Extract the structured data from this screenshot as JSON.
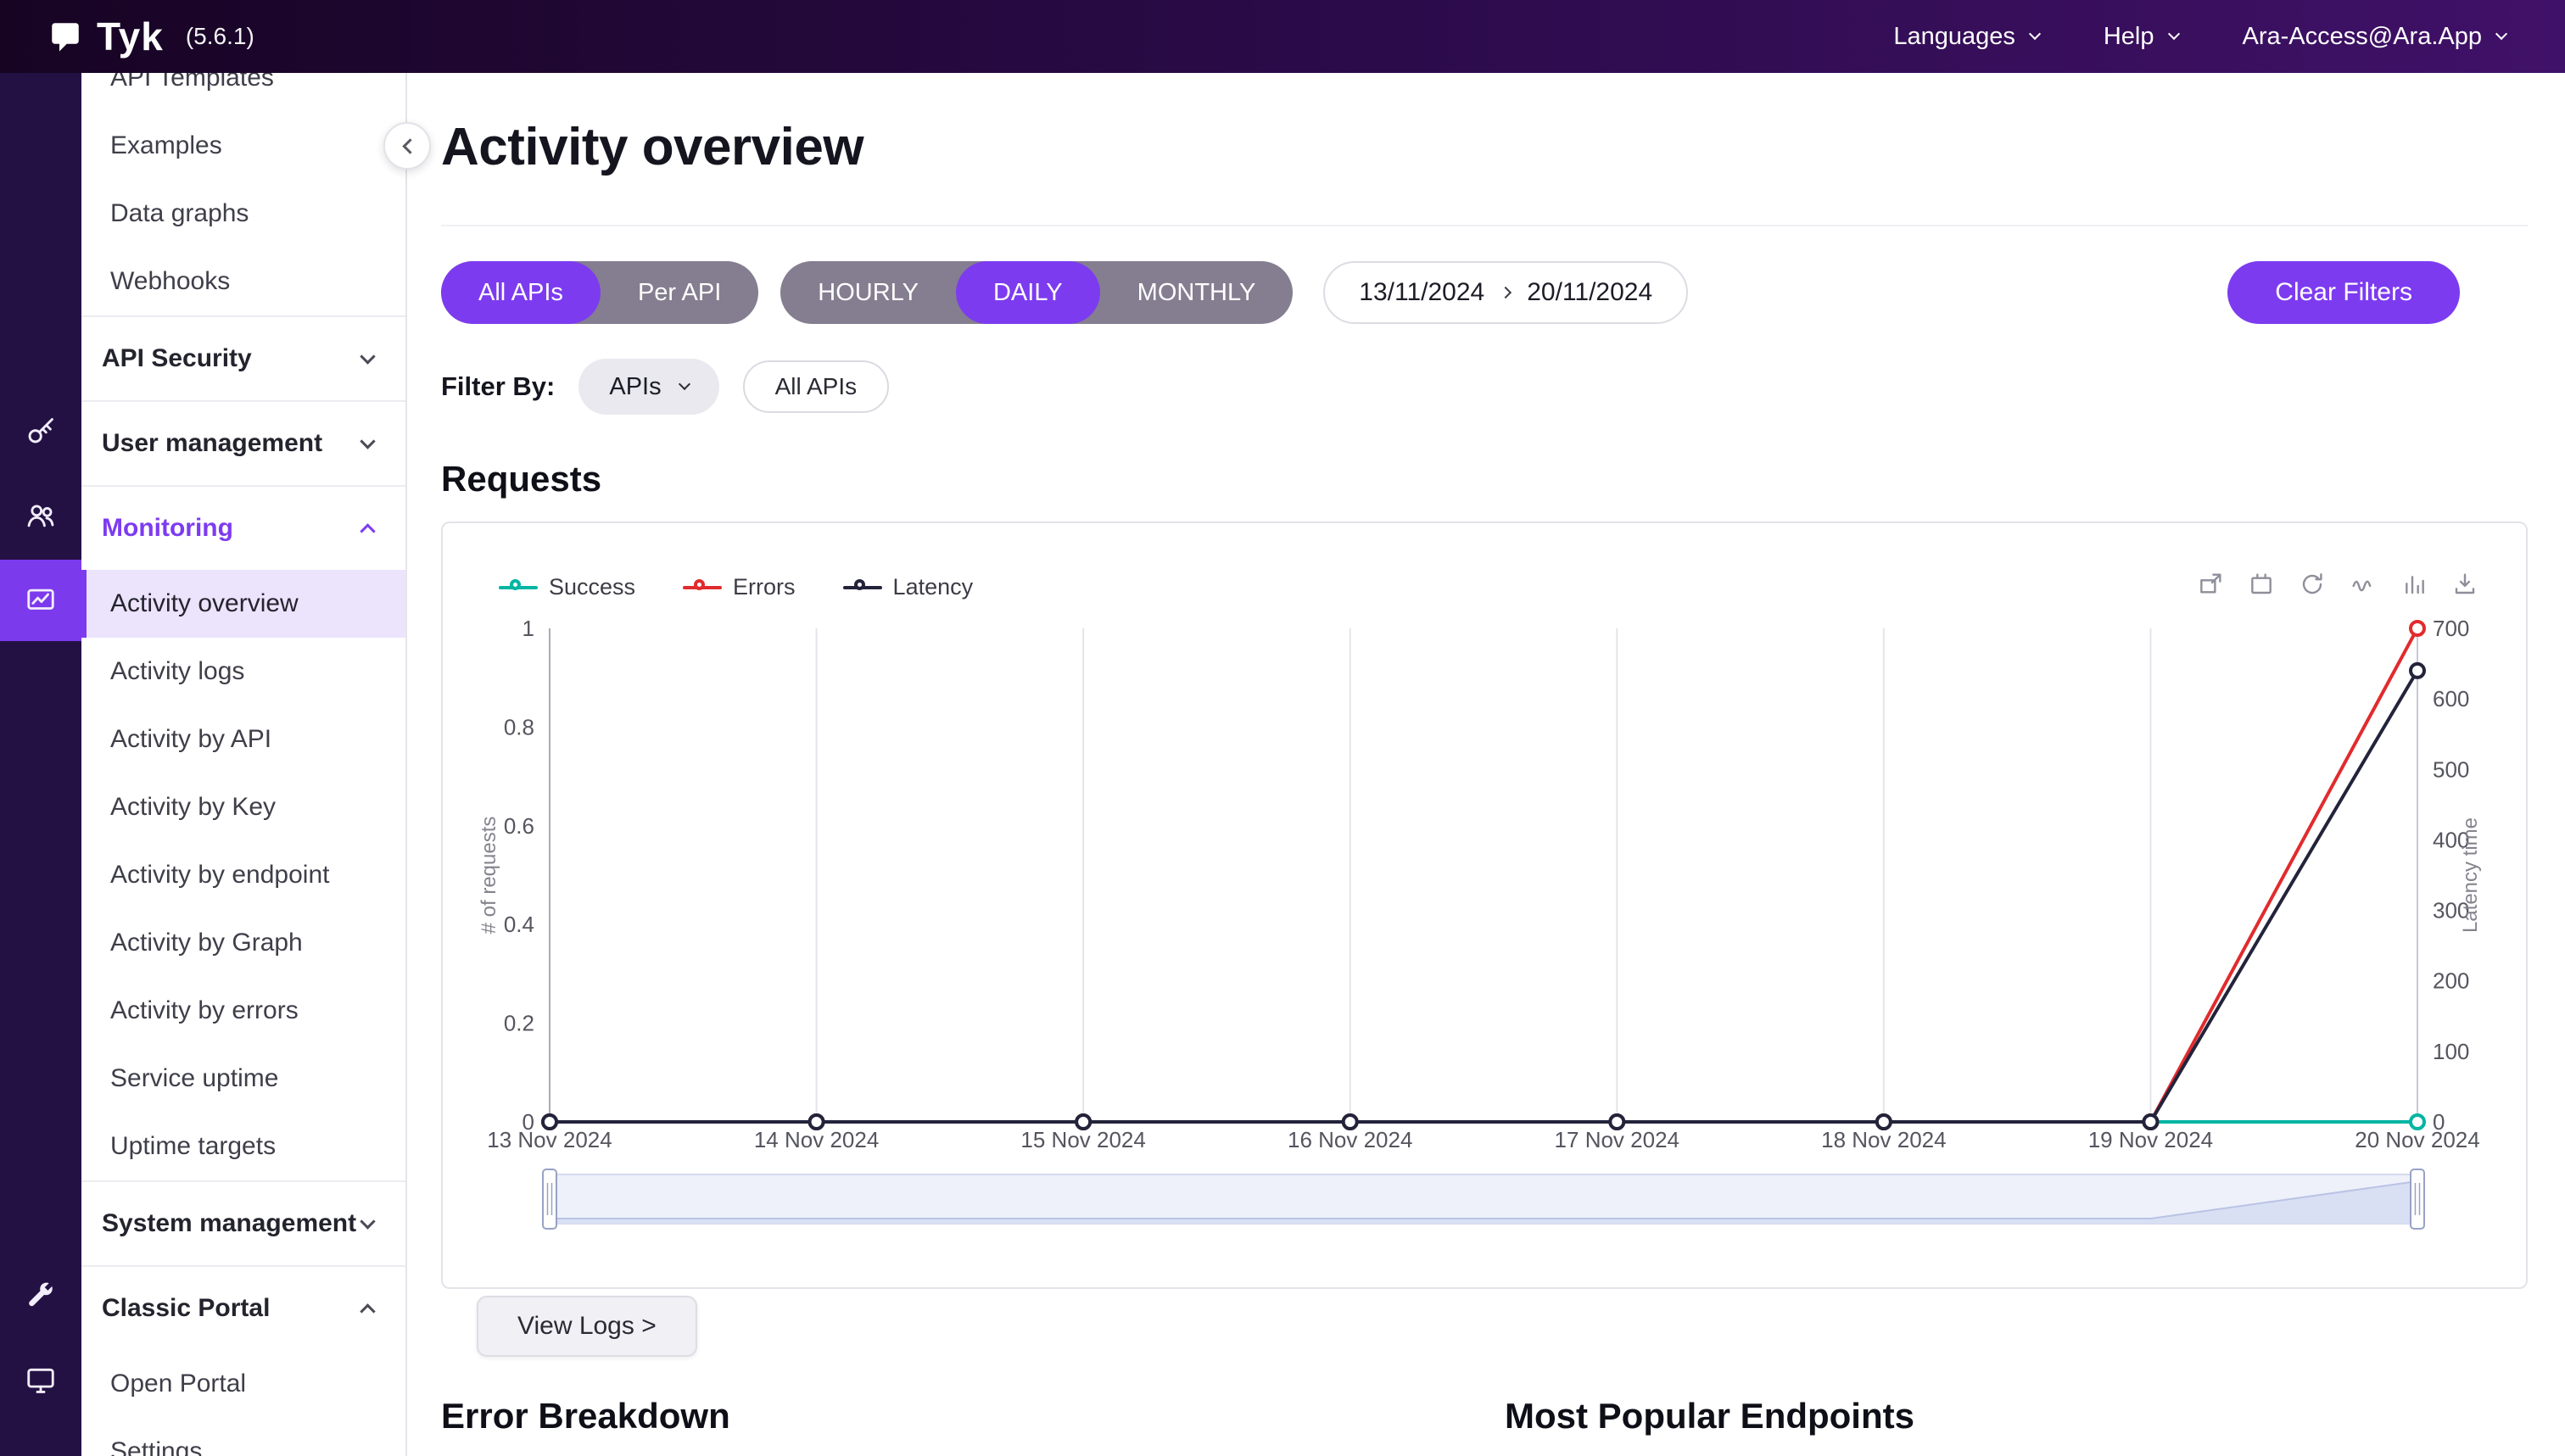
{
  "app": {
    "brand": "Tyk",
    "version": "(5.6.1)"
  },
  "topbar": {
    "languages": "Languages",
    "help": "Help",
    "account": "Ara-Access@Ara.App"
  },
  "rail": {
    "items": [
      {
        "icon": "key-icon",
        "section": "API Security"
      },
      {
        "icon": "users-icon",
        "section": "User management"
      },
      {
        "icon": "activity-chart-icon",
        "section": "Monitoring",
        "active": true
      },
      {
        "icon": "wrench-icon",
        "section": "System management"
      },
      {
        "icon": "portal-monitor-icon",
        "section": "Classic Portal"
      }
    ]
  },
  "sidebar": {
    "items": [
      {
        "label": "API Templates",
        "kind": "link",
        "clipped": true
      },
      {
        "label": "Examples",
        "kind": "link"
      },
      {
        "label": "Data graphs",
        "kind": "link"
      },
      {
        "label": "Webhooks",
        "kind": "link"
      },
      {
        "label": "API Security",
        "kind": "section",
        "chevron": "down"
      },
      {
        "label": "User management",
        "kind": "section",
        "chevron": "down"
      },
      {
        "label": "Monitoring",
        "kind": "section",
        "chevron": "up",
        "active": true
      },
      {
        "label": "Activity overview",
        "kind": "sublink",
        "selected": true
      },
      {
        "label": "Activity logs",
        "kind": "sublink"
      },
      {
        "label": "Activity by API",
        "kind": "sublink"
      },
      {
        "label": "Activity by Key",
        "kind": "sublink"
      },
      {
        "label": "Activity by endpoint",
        "kind": "sublink"
      },
      {
        "label": "Activity by Graph",
        "kind": "sublink"
      },
      {
        "label": "Activity by errors",
        "kind": "sublink"
      },
      {
        "label": "Service uptime",
        "kind": "sublink"
      },
      {
        "label": "Uptime targets",
        "kind": "sublink"
      },
      {
        "label": "System management",
        "kind": "section",
        "chevron": "down"
      },
      {
        "label": "Classic Portal",
        "kind": "section",
        "chevron": "up"
      },
      {
        "label": "Open Portal",
        "kind": "sublink"
      },
      {
        "label": "Settings",
        "kind": "sublink",
        "clipped": true
      }
    ]
  },
  "page": {
    "title": "Activity overview"
  },
  "filters": {
    "api_mode": {
      "options": [
        "All APIs",
        "Per API"
      ],
      "selected": "All APIs"
    },
    "granularity": {
      "options": [
        "HOURLY",
        "DAILY",
        "MONTHLY"
      ],
      "selected": "DAILY"
    },
    "date_from": "13/11/2024",
    "date_to": "20/11/2024",
    "clear_button": "Clear Filters",
    "filter_by_label": "Filter By:",
    "filter_type": "APIs",
    "filter_value": "All APIs"
  },
  "requests": {
    "title": "Requests",
    "view_logs": "View Logs >"
  },
  "chart_data": {
    "type": "line",
    "x": [
      "13 Nov 2024",
      "14 Nov 2024",
      "15 Nov 2024",
      "16 Nov 2024",
      "17 Nov 2024",
      "18 Nov 2024",
      "19 Nov 2024",
      "20 Nov 2024"
    ],
    "series": [
      {
        "name": "Success",
        "color": "#00b5a3",
        "axis": "left",
        "values": [
          0,
          0,
          0,
          0,
          0,
          0,
          0,
          0
        ]
      },
      {
        "name": "Errors",
        "color": "#e12b2e",
        "axis": "left",
        "values": [
          0,
          0,
          0,
          0,
          0,
          0,
          0,
          1
        ]
      },
      {
        "name": "Latency",
        "color": "#23233b",
        "axis": "right",
        "values": [
          0,
          0,
          0,
          0,
          0,
          0,
          0,
          640
        ]
      }
    ],
    "left_axis": {
      "name": "# of requests",
      "min": 0,
      "max": 1,
      "ticks": [
        "0",
        "0.2",
        "0.4",
        "0.6",
        "0.8",
        "1"
      ]
    },
    "right_axis": {
      "name": "Latency time",
      "min": 0,
      "max": 700,
      "ticks": [
        "0",
        "100",
        "200",
        "300",
        "400",
        "500",
        "600",
        "700"
      ]
    },
    "legend_position": "top-left",
    "grid": "vertical-only",
    "toolbox": [
      "zoom-select-icon",
      "zoom-reset-icon",
      "restore-icon",
      "line-chart-icon",
      "bar-chart-icon",
      "download-icon"
    ],
    "datazoom": {
      "window_start": "13 Nov 2024",
      "window_end": "20 Nov 2024"
    }
  },
  "bottom": {
    "error_breakdown": "Error Breakdown",
    "popular_endpoints": "Most Popular Endpoints"
  }
}
